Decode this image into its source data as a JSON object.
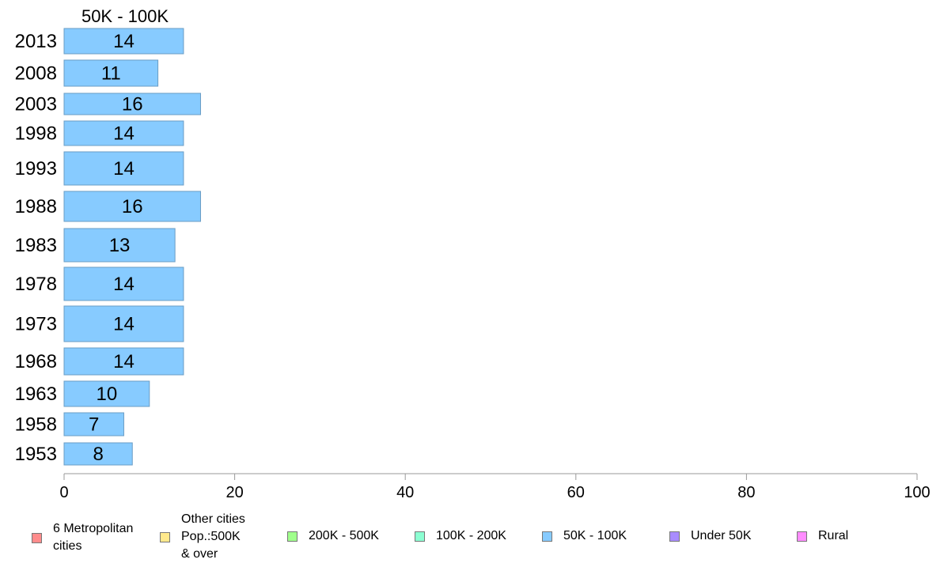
{
  "chart_data": {
    "type": "bar",
    "orientation": "horizontal",
    "title": "50K - 100K",
    "categories": [
      "2013",
      "2008",
      "2003",
      "1998",
      "1993",
      "1988",
      "1983",
      "1978",
      "1973",
      "1968",
      "1963",
      "1958",
      "1953"
    ],
    "values": [
      14,
      11,
      16,
      14,
      14,
      16,
      13,
      14,
      14,
      14,
      10,
      7,
      8
    ],
    "data_labels": [
      "14",
      "11",
      "16",
      "14",
      "14",
      "16",
      "13",
      "14",
      "14",
      "14",
      "10",
      "7",
      "8"
    ],
    "series_color": "#87cbff",
    "xlim": [
      0,
      100
    ],
    "x_ticks": [
      0,
      20,
      40,
      60,
      80,
      100
    ],
    "x_tick_labels": [
      "0",
      "20",
      "40",
      "60",
      "80",
      "100"
    ],
    "grid": false,
    "legend_placement": "bottom",
    "legend": [
      {
        "label": "6 Metropolitan\n cities",
        "color": "#ff8c8c"
      },
      {
        "label": "Other cities\nPop.:500K\n & over",
        "color": "#ffe98c"
      },
      {
        "label": "200K - 500K",
        "color": "#a0ff8c"
      },
      {
        "label": "100K - 200K",
        "color": "#8cffd2"
      },
      {
        "label": "50K - 100K",
        "color": "#87cbff"
      },
      {
        "label": "Under 50K",
        "color": "#a98cff"
      },
      {
        "label": "Rural",
        "color": "#ff8cff"
      }
    ]
  }
}
